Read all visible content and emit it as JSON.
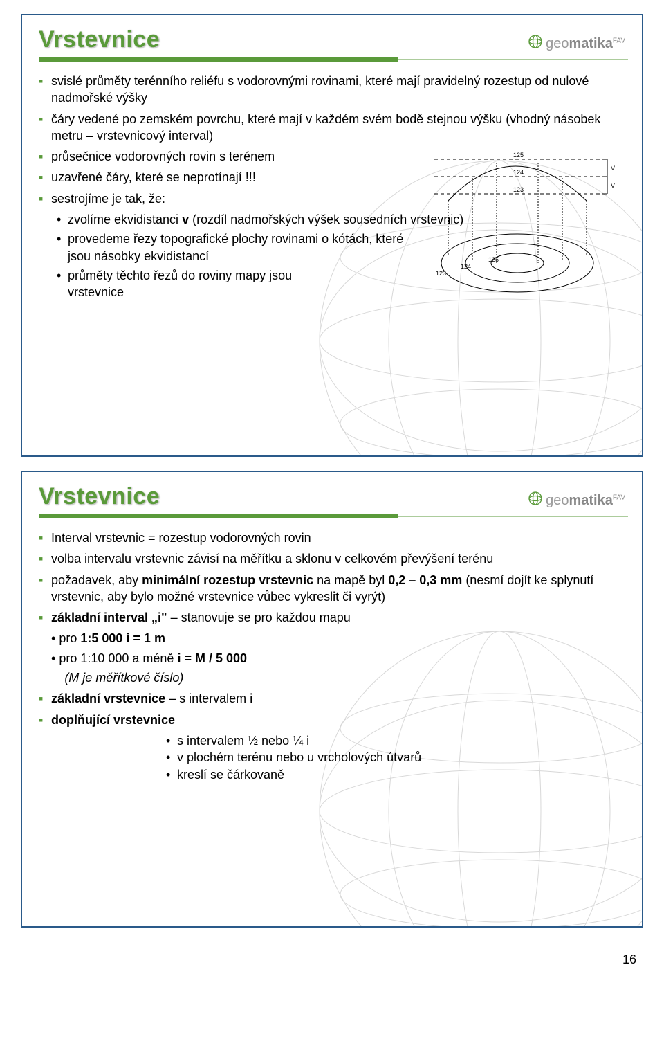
{
  "page_number": "16",
  "colors": {
    "accent": "#5a9a3a",
    "title": "#5a9a3a",
    "border": "#2a5a8a",
    "globe": "#d0d0d0",
    "text": "#000000",
    "logo_gray": "#999999"
  },
  "logo": {
    "text_geo": "geo",
    "text_matika": "matika",
    "sup": "FAV"
  },
  "slide1": {
    "title": "Vrstevnice",
    "items": [
      {
        "lvl": 1,
        "text": "svislé průměty terénního reliéfu s vodorovnými rovinami, které mají pravidelný rozestup od nulové nadmořské výšky"
      },
      {
        "lvl": 1,
        "text": "čáry vedené po zemském povrchu, které mají v každém svém bodě stejnou výšku (vhodný násobek metru – vrstevnicový interval)"
      },
      {
        "lvl": 1,
        "text": "průsečnice vodorovných rovin s terénem"
      },
      {
        "lvl": 1,
        "text": "uzavřené čáry, které se neprotínají !!!"
      },
      {
        "lvl": 1,
        "text": "sestrojíme je tak, že:"
      },
      {
        "lvl": 2,
        "rich": [
          {
            "t": "zvolíme ekvidistanci  "
          },
          {
            "t": "v",
            "bold": true
          },
          {
            "t": " (rozdíl nadmořských výšek sousedních vrstevnic)"
          }
        ]
      },
      {
        "lvl": 2,
        "text": "provedeme řezy topografické plochy rovinami o kótách, které jsou násobky ekvidistancí"
      },
      {
        "lvl": 2,
        "text": "průměty těchto řezů do roviny mapy jsou vrstevnice"
      }
    ],
    "diagram": {
      "section_labels": [
        "125",
        "124",
        "123"
      ],
      "plan_labels": [
        "123",
        "124",
        "125"
      ],
      "bracket_labels": [
        "V",
        "V"
      ]
    }
  },
  "slide2": {
    "title": "Vrstevnice",
    "items": [
      {
        "lvl": 1,
        "text": "Interval vrstevnic = rozestup vodorovných rovin"
      },
      {
        "lvl": 1,
        "text": "volba intervalu vrstevnic závisí na měřítku a sklonu v celkovém převýšení terénu"
      },
      {
        "lvl": 1,
        "rich": [
          {
            "t": "požadavek, aby "
          },
          {
            "t": "minimální rozestup vrstevnic",
            "bold": true
          },
          {
            "t": " na mapě byl "
          },
          {
            "t": "0,2 – 0,3 mm",
            "bold": true
          },
          {
            "t": " (nesmí dojít ke splynutí vrstevnic, aby bylo možné vrstevnice vůbec vykreslit či vyrýt)"
          }
        ]
      },
      {
        "lvl": 1,
        "rich": [
          {
            "t": "základní interval „i\"",
            "bold": true
          },
          {
            "t": " – stanovuje se pro každou mapu"
          }
        ]
      },
      {
        "lvl": 2,
        "rich": [
          {
            "t": "pro "
          },
          {
            "t": "1:5 000",
            "bold": true
          },
          {
            "t": "        "
          },
          {
            "t": "i = 1 m",
            "bold": true
          }
        ],
        "nobullet": true
      },
      {
        "lvl": 2,
        "rich": [
          {
            "t": "pro 1:10 000 a méně "
          },
          {
            "t": "i = M / 5 000",
            "bold": true
          }
        ],
        "nobullet": true
      },
      {
        "lvl": 2,
        "rich": [
          {
            "t": "(M je měřítkové číslo)",
            "italic": true
          }
        ],
        "nobullet": true,
        "indent": 8
      },
      {
        "lvl": 1,
        "rich": [
          {
            "t": "základní vrstevnice",
            "bold": true
          },
          {
            "t": " – s intervalem "
          },
          {
            "t": "i",
            "bold": true
          }
        ]
      },
      {
        "lvl": 1,
        "rich": [
          {
            "t": "doplňující vrstevnice",
            "bold": true
          }
        ]
      },
      {
        "lvl": 2,
        "text": "s intervalem ½ nebo ¼  i"
      },
      {
        "lvl": 2,
        "text": "v plochém terénu nebo u vrcholových útvarů"
      },
      {
        "lvl": 2,
        "text": "kreslí se čárkovaně"
      }
    ]
  }
}
